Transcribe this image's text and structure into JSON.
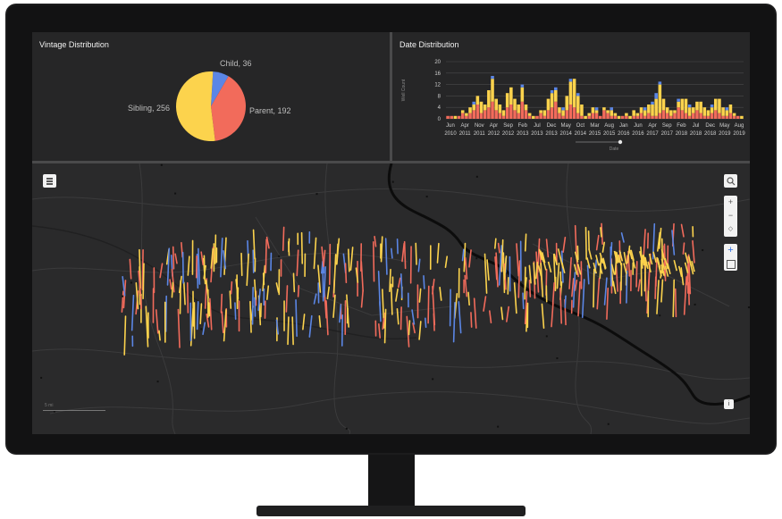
{
  "vintage": {
    "title": "Vintage Distribution",
    "slices": [
      {
        "name": "Child",
        "value": 36,
        "label": "Child, 36",
        "color": "#5b86e5"
      },
      {
        "name": "Parent",
        "value": 192,
        "label": "Parent, 192",
        "color": "#f26b5b"
      },
      {
        "name": "Sibling",
        "value": 256,
        "label": "Sibling, 256",
        "color": "#fcd34d"
      }
    ]
  },
  "dates": {
    "title": "Date Distribution",
    "ylabel": "Well Count",
    "xlabel": "Date",
    "yticks": [
      "0",
      "4",
      "8",
      "12",
      "16",
      "20"
    ],
    "xticks": [
      {
        "m": "Jun",
        "y": "2010"
      },
      {
        "m": "Apr",
        "y": "2011"
      },
      {
        "m": "Nov",
        "y": "2011"
      },
      {
        "m": "Apr",
        "y": "2012"
      },
      {
        "m": "Sep",
        "y": "2012"
      },
      {
        "m": "Feb",
        "y": "2013"
      },
      {
        "m": "Jul",
        "y": "2013"
      },
      {
        "m": "Dec",
        "y": "2013"
      },
      {
        "m": "May",
        "y": "2014"
      },
      {
        "m": "Oct",
        "y": "2014"
      },
      {
        "m": "Mar",
        "y": "2015"
      },
      {
        "m": "Aug",
        "y": "2015"
      },
      {
        "m": "Jan",
        "y": "2016"
      },
      {
        "m": "Jun",
        "y": "2016"
      },
      {
        "m": "Apr",
        "y": "2017"
      },
      {
        "m": "Sep",
        "y": "2017"
      },
      {
        "m": "Feb",
        "y": "2018"
      },
      {
        "m": "Jul",
        "y": "2018"
      },
      {
        "m": "Dec",
        "y": "2018"
      },
      {
        "m": "May",
        "y": "2019"
      },
      {
        "m": "Aug",
        "y": "2019"
      }
    ]
  },
  "chart_data": [
    {
      "type": "pie",
      "title": "Vintage Distribution",
      "categories": [
        "Child",
        "Parent",
        "Sibling"
      ],
      "values": [
        36,
        192,
        256
      ]
    },
    {
      "type": "bar",
      "title": "Date Distribution",
      "xlabel": "Date",
      "ylabel": "Well Count",
      "ylim": [
        0,
        20
      ],
      "stacked": true,
      "series": [
        {
          "name": "Parent",
          "color": "#f26b5b",
          "values": [
            1,
            1,
            0,
            1,
            2,
            1,
            2,
            3,
            5,
            2,
            3,
            4,
            6,
            3,
            2,
            1,
            4,
            5,
            3,
            2,
            6,
            3,
            1,
            0,
            1,
            2,
            1,
            3,
            4,
            6,
            2,
            1,
            3,
            5,
            4,
            2,
            1,
            0,
            1,
            2,
            2,
            1,
            3,
            2,
            1,
            1,
            0,
            1,
            1,
            0,
            1,
            1,
            2,
            1,
            2,
            1,
            1,
            2,
            3,
            2,
            1,
            2,
            4,
            3,
            2,
            1,
            2,
            3,
            2,
            1,
            1,
            2,
            3,
            2,
            1,
            1,
            2,
            1,
            1,
            0
          ]
        },
        {
          "name": "Sibling",
          "color": "#fcd34d",
          "values": [
            0,
            0,
            1,
            0,
            1,
            1,
            2,
            2,
            3,
            4,
            2,
            6,
            8,
            4,
            3,
            2,
            5,
            6,
            4,
            3,
            5,
            2,
            1,
            1,
            0,
            1,
            2,
            4,
            5,
            4,
            2,
            2,
            5,
            8,
            10,
            6,
            4,
            1,
            1,
            2,
            1,
            0,
            1,
            1,
            2,
            1,
            1,
            0,
            1,
            1,
            2,
            1,
            2,
            2,
            3,
            4,
            6,
            10,
            4,
            2,
            2,
            1,
            2,
            4,
            5,
            3,
            2,
            3,
            4,
            3,
            2,
            2,
            4,
            5,
            3,
            2,
            3,
            1,
            0,
            1
          ]
        },
        {
          "name": "Child",
          "color": "#5b86e5",
          "values": [
            0,
            0,
            0,
            0,
            0,
            0,
            0,
            1,
            0,
            0,
            0,
            0,
            1,
            0,
            0,
            0,
            0,
            0,
            0,
            0,
            1,
            0,
            0,
            0,
            0,
            0,
            0,
            0,
            1,
            1,
            0,
            1,
            0,
            1,
            0,
            1,
            0,
            0,
            0,
            0,
            1,
            0,
            0,
            0,
            1,
            0,
            0,
            0,
            0,
            0,
            0,
            0,
            0,
            1,
            0,
            1,
            2,
            1,
            0,
            0,
            0,
            0,
            1,
            0,
            0,
            1,
            0,
            0,
            0,
            0,
            0,
            1,
            0,
            0,
            0,
            1,
            0,
            0,
            0,
            0
          ]
        }
      ]
    }
  ],
  "map": {
    "layers_icon": "layers-icon",
    "search_icon": "search-icon",
    "scale_label": "5 mi"
  }
}
